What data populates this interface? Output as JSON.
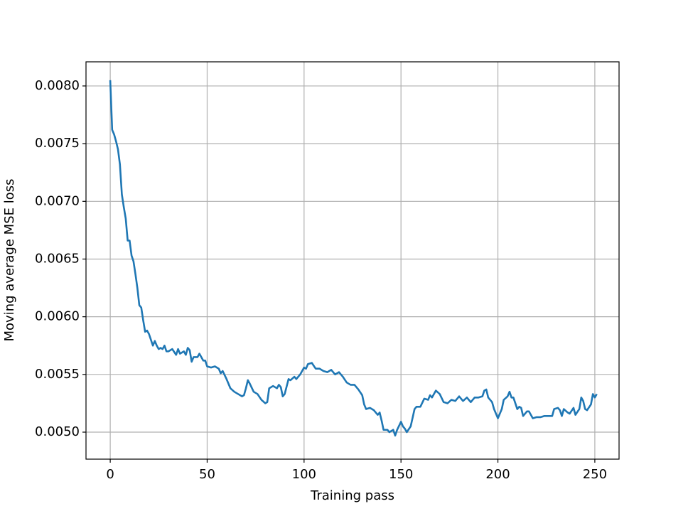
{
  "chart_data": {
    "type": "line",
    "x_label": "Training pass",
    "y_label": "Moving average MSE loss",
    "x": [
      0,
      1,
      2,
      3,
      4,
      5,
      6,
      7,
      8,
      9,
      10,
      11,
      12,
      13,
      14,
      15,
      16,
      17,
      18,
      19,
      20,
      21,
      22,
      23,
      24,
      25,
      26,
      27,
      28,
      29,
      30,
      32,
      34,
      35,
      36,
      38,
      39,
      40,
      41,
      42,
      43,
      45,
      46,
      48,
      49,
      50,
      52,
      54,
      56,
      57,
      58,
      60,
      62,
      64,
      66,
      68,
      69,
      70,
      71,
      72,
      74,
      76,
      78,
      80,
      81,
      82,
      84,
      86,
      87,
      88,
      89,
      90,
      92,
      93,
      95,
      96,
      98,
      100,
      101,
      102,
      104,
      106,
      108,
      110,
      112,
      114,
      116,
      118,
      120,
      122,
      124,
      126,
      128,
      130,
      131,
      132,
      134,
      136,
      138,
      139,
      140,
      141,
      143,
      144,
      146,
      147,
      148,
      150,
      151,
      152,
      153,
      155,
      157,
      158,
      160,
      162,
      164,
      165,
      166,
      168,
      170,
      172,
      174,
      176,
      178,
      180,
      182,
      184,
      186,
      188,
      190,
      192,
      193,
      194,
      195,
      197,
      198,
      200,
      202,
      203,
      205,
      206,
      207,
      208,
      210,
      211,
      212,
      213,
      215,
      216,
      218,
      220,
      222,
      224,
      226,
      228,
      229,
      231,
      232,
      233,
      234,
      236,
      237,
      239,
      240,
      242,
      243,
      244,
      245,
      246,
      248,
      249,
      250,
      251
    ],
    "series": [
      {
        "color": "#1f77b4",
        "values": [
          0.00805,
          0.00762,
          0.00758,
          0.00752,
          0.00745,
          0.00732,
          0.00706,
          0.00695,
          0.00685,
          0.00666,
          0.00666,
          0.00653,
          0.00648,
          0.00637,
          0.00625,
          0.0061,
          0.00608,
          0.00597,
          0.00587,
          0.00588,
          0.00585,
          0.0058,
          0.00575,
          0.00579,
          0.00575,
          0.00572,
          0.00573,
          0.00572,
          0.00575,
          0.0057,
          0.0057,
          0.00572,
          0.00567,
          0.00572,
          0.00568,
          0.0057,
          0.00567,
          0.00573,
          0.00571,
          0.00561,
          0.00565,
          0.00565,
          0.00568,
          0.00562,
          0.00562,
          0.00557,
          0.00556,
          0.00557,
          0.00555,
          0.00551,
          0.00553,
          0.00546,
          0.00538,
          0.00535,
          0.00533,
          0.00531,
          0.00532,
          0.00538,
          0.00545,
          0.00542,
          0.00535,
          0.00533,
          0.00528,
          0.00525,
          0.00526,
          0.00538,
          0.0054,
          0.00538,
          0.00541,
          0.00539,
          0.00531,
          0.00533,
          0.00546,
          0.00545,
          0.00548,
          0.00546,
          0.0055,
          0.00556,
          0.00555,
          0.00559,
          0.0056,
          0.00555,
          0.00555,
          0.00553,
          0.00552,
          0.00554,
          0.0055,
          0.00552,
          0.00548,
          0.00543,
          0.00541,
          0.00541,
          0.00537,
          0.00532,
          0.00524,
          0.0052,
          0.00521,
          0.00519,
          0.00515,
          0.00517,
          0.0051,
          0.00502,
          0.00502,
          0.005,
          0.00502,
          0.00497,
          0.00502,
          0.00509,
          0.00505,
          0.00503,
          0.005,
          0.00505,
          0.0052,
          0.00522,
          0.00522,
          0.00529,
          0.00528,
          0.00532,
          0.0053,
          0.00536,
          0.00533,
          0.00526,
          0.00525,
          0.00528,
          0.00527,
          0.00531,
          0.00527,
          0.0053,
          0.00526,
          0.0053,
          0.0053,
          0.00531,
          0.00536,
          0.00537,
          0.0053,
          0.00526,
          0.0052,
          0.00512,
          0.0052,
          0.00528,
          0.00531,
          0.00535,
          0.0053,
          0.0053,
          0.0052,
          0.00522,
          0.00521,
          0.00514,
          0.00518,
          0.00518,
          0.00512,
          0.00513,
          0.00513,
          0.00514,
          0.00514,
          0.00514,
          0.0052,
          0.00521,
          0.00519,
          0.00514,
          0.0052,
          0.00517,
          0.00516,
          0.00521,
          0.00515,
          0.0052,
          0.0053,
          0.00527,
          0.0052,
          0.00519,
          0.00524,
          0.00533,
          0.0053,
          0.00533
        ]
      }
    ],
    "xlim": [
      -12.5,
      262.5
    ],
    "ylim": [
      0.004766,
      0.008209
    ],
    "xticks": [
      0,
      50,
      100,
      150,
      200,
      250
    ],
    "yticks": [
      {
        "value": 0.005,
        "label": "0.0050"
      },
      {
        "value": 0.0055,
        "label": "0.0055"
      },
      {
        "value": 0.006,
        "label": "0.0060"
      },
      {
        "value": 0.0065,
        "label": "0.0065"
      },
      {
        "value": 0.007,
        "label": "0.0070"
      },
      {
        "value": 0.0075,
        "label": "0.0075"
      },
      {
        "value": 0.008,
        "label": "0.0080"
      }
    ],
    "grid": true
  }
}
